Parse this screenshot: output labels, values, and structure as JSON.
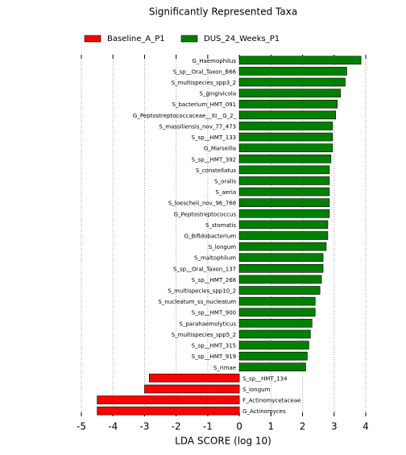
{
  "chart_data": {
    "type": "lda-bar",
    "title": "Significantly Represented Taxa",
    "xlabel": "LDA SCORE (log 10)",
    "xlim": [
      -5,
      4
    ],
    "xticks": [
      -5,
      -4,
      -3,
      -2,
      -1,
      0,
      1,
      2,
      3,
      4
    ],
    "grid": true,
    "legend": "top",
    "series": [
      {
        "name": "DUS_24_Weeks_P1",
        "color": "#008000",
        "categories": [
          "G_Haemophilus",
          "S_sp__Oral_Taxon_B66",
          "S_multispecies_spp3_2",
          "S_gingivicola",
          "S_bacterium_HMT_091",
          "G_Peptostreptococcaceae__XI__G_2_",
          "S_massiliensis_nov_77_473",
          "S_sp__HMT_133",
          "G_Marseilla",
          "S_sp__HMT_392",
          "S_constellatus",
          "S_oralis",
          "S_aeria",
          "S_loescheii_nov_96_768",
          "G_Peptostreptococcus",
          "S_stomatis",
          "G_Bifidobacterium",
          "S_longum",
          "S_maltophilum",
          "S_sp__Oral_Taxon_137",
          "S_sp__HMT_268",
          "S_multispecies_spp10_2",
          "S_nucleatum_ss_nucleatum",
          "S_sp__HMT_900",
          "S_parahaemolyticus",
          "S_multispecies_spp5_2",
          "S_sp__HMT_315",
          "S_sp__HMT_919",
          "S_rimae"
        ],
        "values": [
          3.85,
          3.4,
          3.35,
          3.2,
          3.1,
          3.05,
          2.95,
          2.95,
          2.95,
          2.9,
          2.85,
          2.85,
          2.85,
          2.85,
          2.85,
          2.8,
          2.8,
          2.75,
          2.65,
          2.65,
          2.6,
          2.55,
          2.4,
          2.4,
          2.3,
          2.25,
          2.2,
          2.15,
          2.1
        ]
      },
      {
        "name": "Baseline_A_P1",
        "color": "#ff0000",
        "categories": [
          "S_sp__HMT_134",
          "S_longum",
          "F_Actinomycetaceae",
          "G_Actinomyces"
        ],
        "values": [
          -2.85,
          -3.0,
          -4.5,
          -4.5
        ]
      }
    ]
  }
}
